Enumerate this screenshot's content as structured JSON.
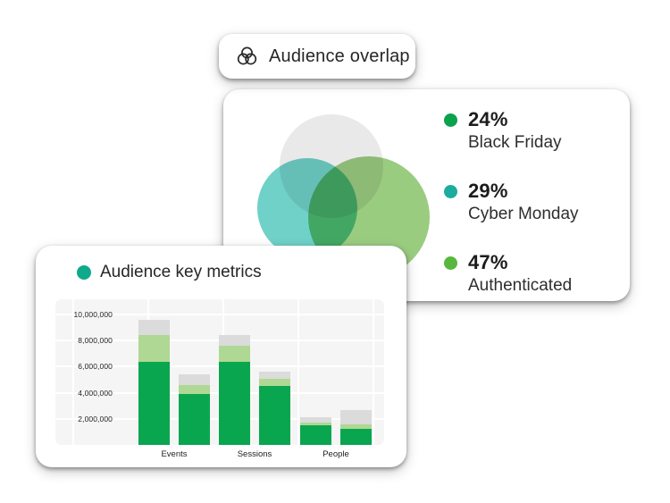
{
  "badge": {
    "label": "Audience overlap",
    "icon": "venn-diagram-icon"
  },
  "overlap_card": {
    "venn": {
      "circle_colors": {
        "gray": "#e9e9e9",
        "teal": "#6fd1c8",
        "green": "#9acc80"
      }
    },
    "legend": [
      {
        "pct": "24%",
        "label": "Black Friday",
        "color": "#0ba24d"
      },
      {
        "pct": "29%",
        "label": "Cyber Monday",
        "color": "#1cab9f"
      },
      {
        "pct": "47%",
        "label": "Authenticated",
        "color": "#56b83c"
      }
    ]
  },
  "metrics_card": {
    "title": "Audience key metrics",
    "dot_color": "#0fa98c"
  },
  "chart_data": [
    {
      "type": "venn",
      "title": "Audience overlap",
      "legend_position": "right",
      "sets": [
        {
          "label": "Black Friday",
          "pct": 24,
          "dot_color": "#0ba24d"
        },
        {
          "label": "Cyber Monday",
          "pct": 29,
          "dot_color": "#1cab9f"
        },
        {
          "label": "Authenticated",
          "pct": 47,
          "dot_color": "#56b83c"
        }
      ]
    },
    {
      "type": "bar",
      "stacked": true,
      "title": "Audience key metrics",
      "unit": "millions",
      "categories": [
        "Events",
        "Sessions",
        "People"
      ],
      "bars_per_category": 2,
      "series": [
        {
          "name": "green",
          "color": "#0aa64f",
          "values": [
            6.4,
            3.9,
            6.4,
            4.5,
            1.5,
            1.2
          ]
        },
        {
          "name": "light-green",
          "color": "#aed893",
          "values": [
            2.0,
            0.7,
            1.2,
            0.6,
            0.2,
            0.4
          ]
        },
        {
          "name": "gray",
          "color": "#dbdbdb",
          "values": [
            1.2,
            0.8,
            0.8,
            0.5,
            0.4,
            1.1
          ]
        }
      ],
      "totals": [
        9.6,
        5.4,
        8.4,
        5.6,
        2.1,
        2.7
      ],
      "y_ticks": [
        {
          "v": 2,
          "label": "2,000,000"
        },
        {
          "v": 4,
          "label": "4,000,000"
        },
        {
          "v": 6,
          "label": "6,000,000"
        },
        {
          "v": 8,
          "label": "8,000,000"
        },
        {
          "v": 10,
          "label": "10,000,000"
        }
      ],
      "ylim": [
        0,
        11.2
      ],
      "grid": true,
      "plot_background": "#f5f5f5"
    }
  ]
}
